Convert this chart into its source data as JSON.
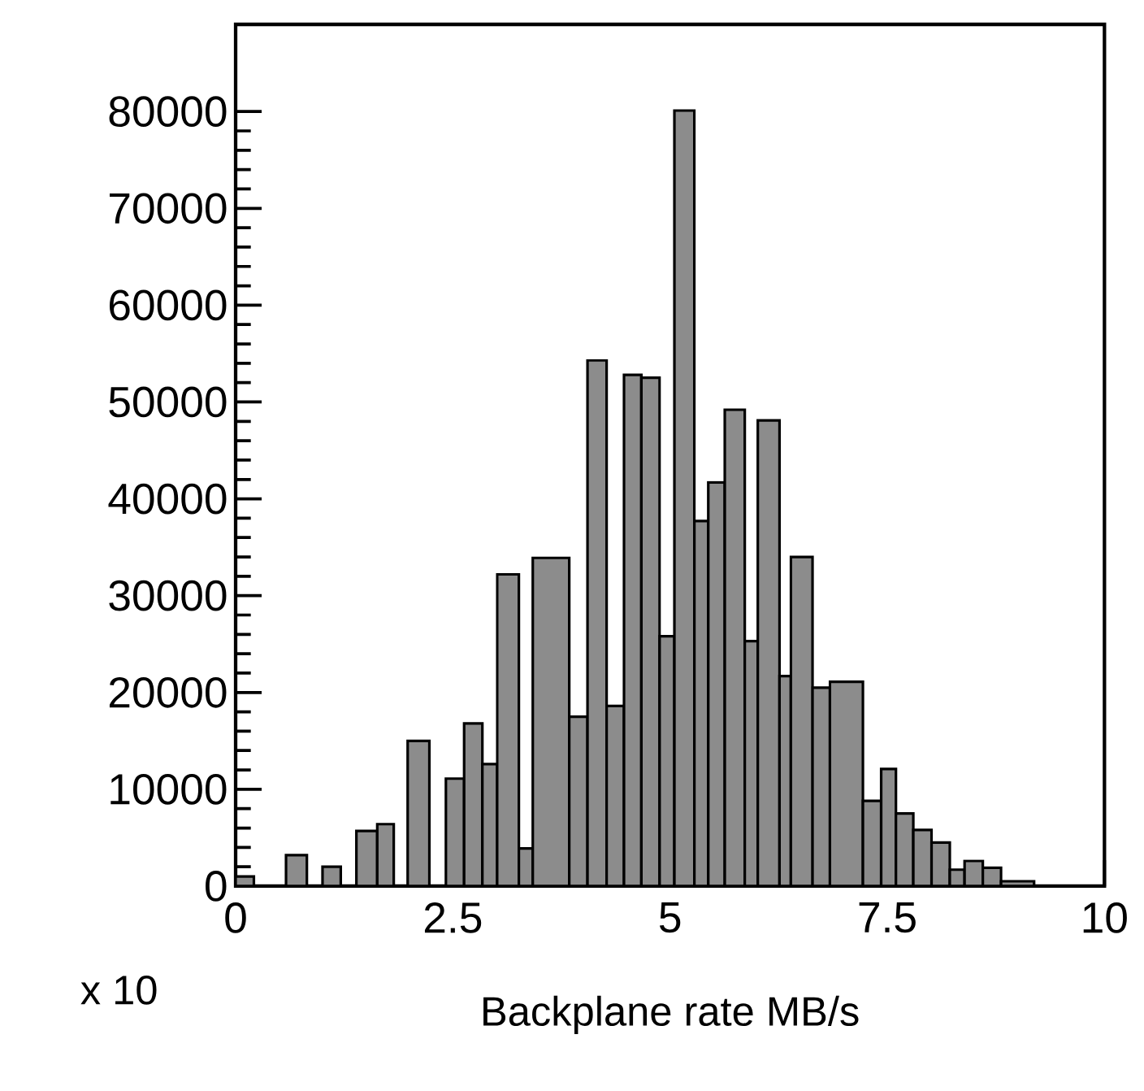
{
  "chart_data": {
    "type": "histogram",
    "xlabel": "Backplane rate MB/s",
    "color": "#8c8c8c",
    "bins": [
      0,
      0.21,
      0.58,
      0.82,
      1.0,
      1.21,
      1.39,
      1.63,
      1.82,
      1.98,
      2.23,
      2.42,
      2.63,
      2.84,
      3.01,
      3.26,
      3.42,
      3.84,
      4.05,
      4.27,
      4.47,
      4.67,
      4.88,
      5.05,
      5.28,
      5.44,
      5.63,
      5.86,
      6.01,
      6.26,
      6.39,
      6.64,
      6.84,
      7.22,
      7.43,
      7.6,
      7.8,
      8.01,
      8.22,
      8.39,
      8.6,
      8.81,
      9.19
    ],
    "values": [
      1000,
      0,
      3200,
      0,
      2000,
      0,
      5700,
      6400,
      0,
      15000,
      0,
      11100,
      16800,
      12600,
      32200,
      3900,
      33900,
      17500,
      54300,
      18600,
      52800,
      52500,
      25800,
      80100,
      37700,
      41700,
      49200,
      25300,
      48100,
      21700,
      34000,
      20500,
      21100,
      8800,
      12100,
      7500,
      5800,
      4500,
      1700,
      2600,
      1900,
      500
    ],
    "xlim": [
      0,
      10
    ],
    "ylim": [
      0,
      89000
    ],
    "xticks": [
      0,
      2.5,
      5,
      7.5,
      10
    ],
    "yticks": [
      0,
      10000,
      20000,
      30000,
      40000,
      50000,
      60000,
      70000,
      80000
    ],
    "annotations": [
      "x 10"
    ]
  }
}
